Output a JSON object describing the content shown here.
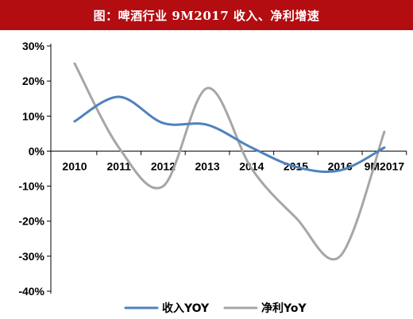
{
  "header": {
    "title": "图：啤酒行业 9M2017 收入、净利增速"
  },
  "chart_data": {
    "type": "line",
    "title": "图：啤酒行业 9M2017 收入、净利增速",
    "categories": [
      "2010",
      "2011",
      "2012",
      "2013",
      "2014",
      "2015",
      "2016",
      "9M2017"
    ],
    "series": [
      {
        "name": "收入YOY",
        "color": "#4f81bd",
        "values": [
          8.5,
          15.5,
          8.0,
          7.5,
          1.0,
          -4.5,
          -5.5,
          1.0
        ]
      },
      {
        "name": "净利YoY",
        "color": "#a6a6a6",
        "values": [
          25.0,
          1.0,
          -10.0,
          18.0,
          -5.0,
          -19.0,
          -30.0,
          5.5
        ]
      }
    ],
    "yticks": [
      "30%",
      "20%",
      "10%",
      "0%",
      "-10%",
      "-20%",
      "-30%",
      "-40%"
    ],
    "ylim": [
      -40,
      30
    ],
    "xlabel": "",
    "ylabel": "",
    "grid": false,
    "legend": "bottom"
  }
}
